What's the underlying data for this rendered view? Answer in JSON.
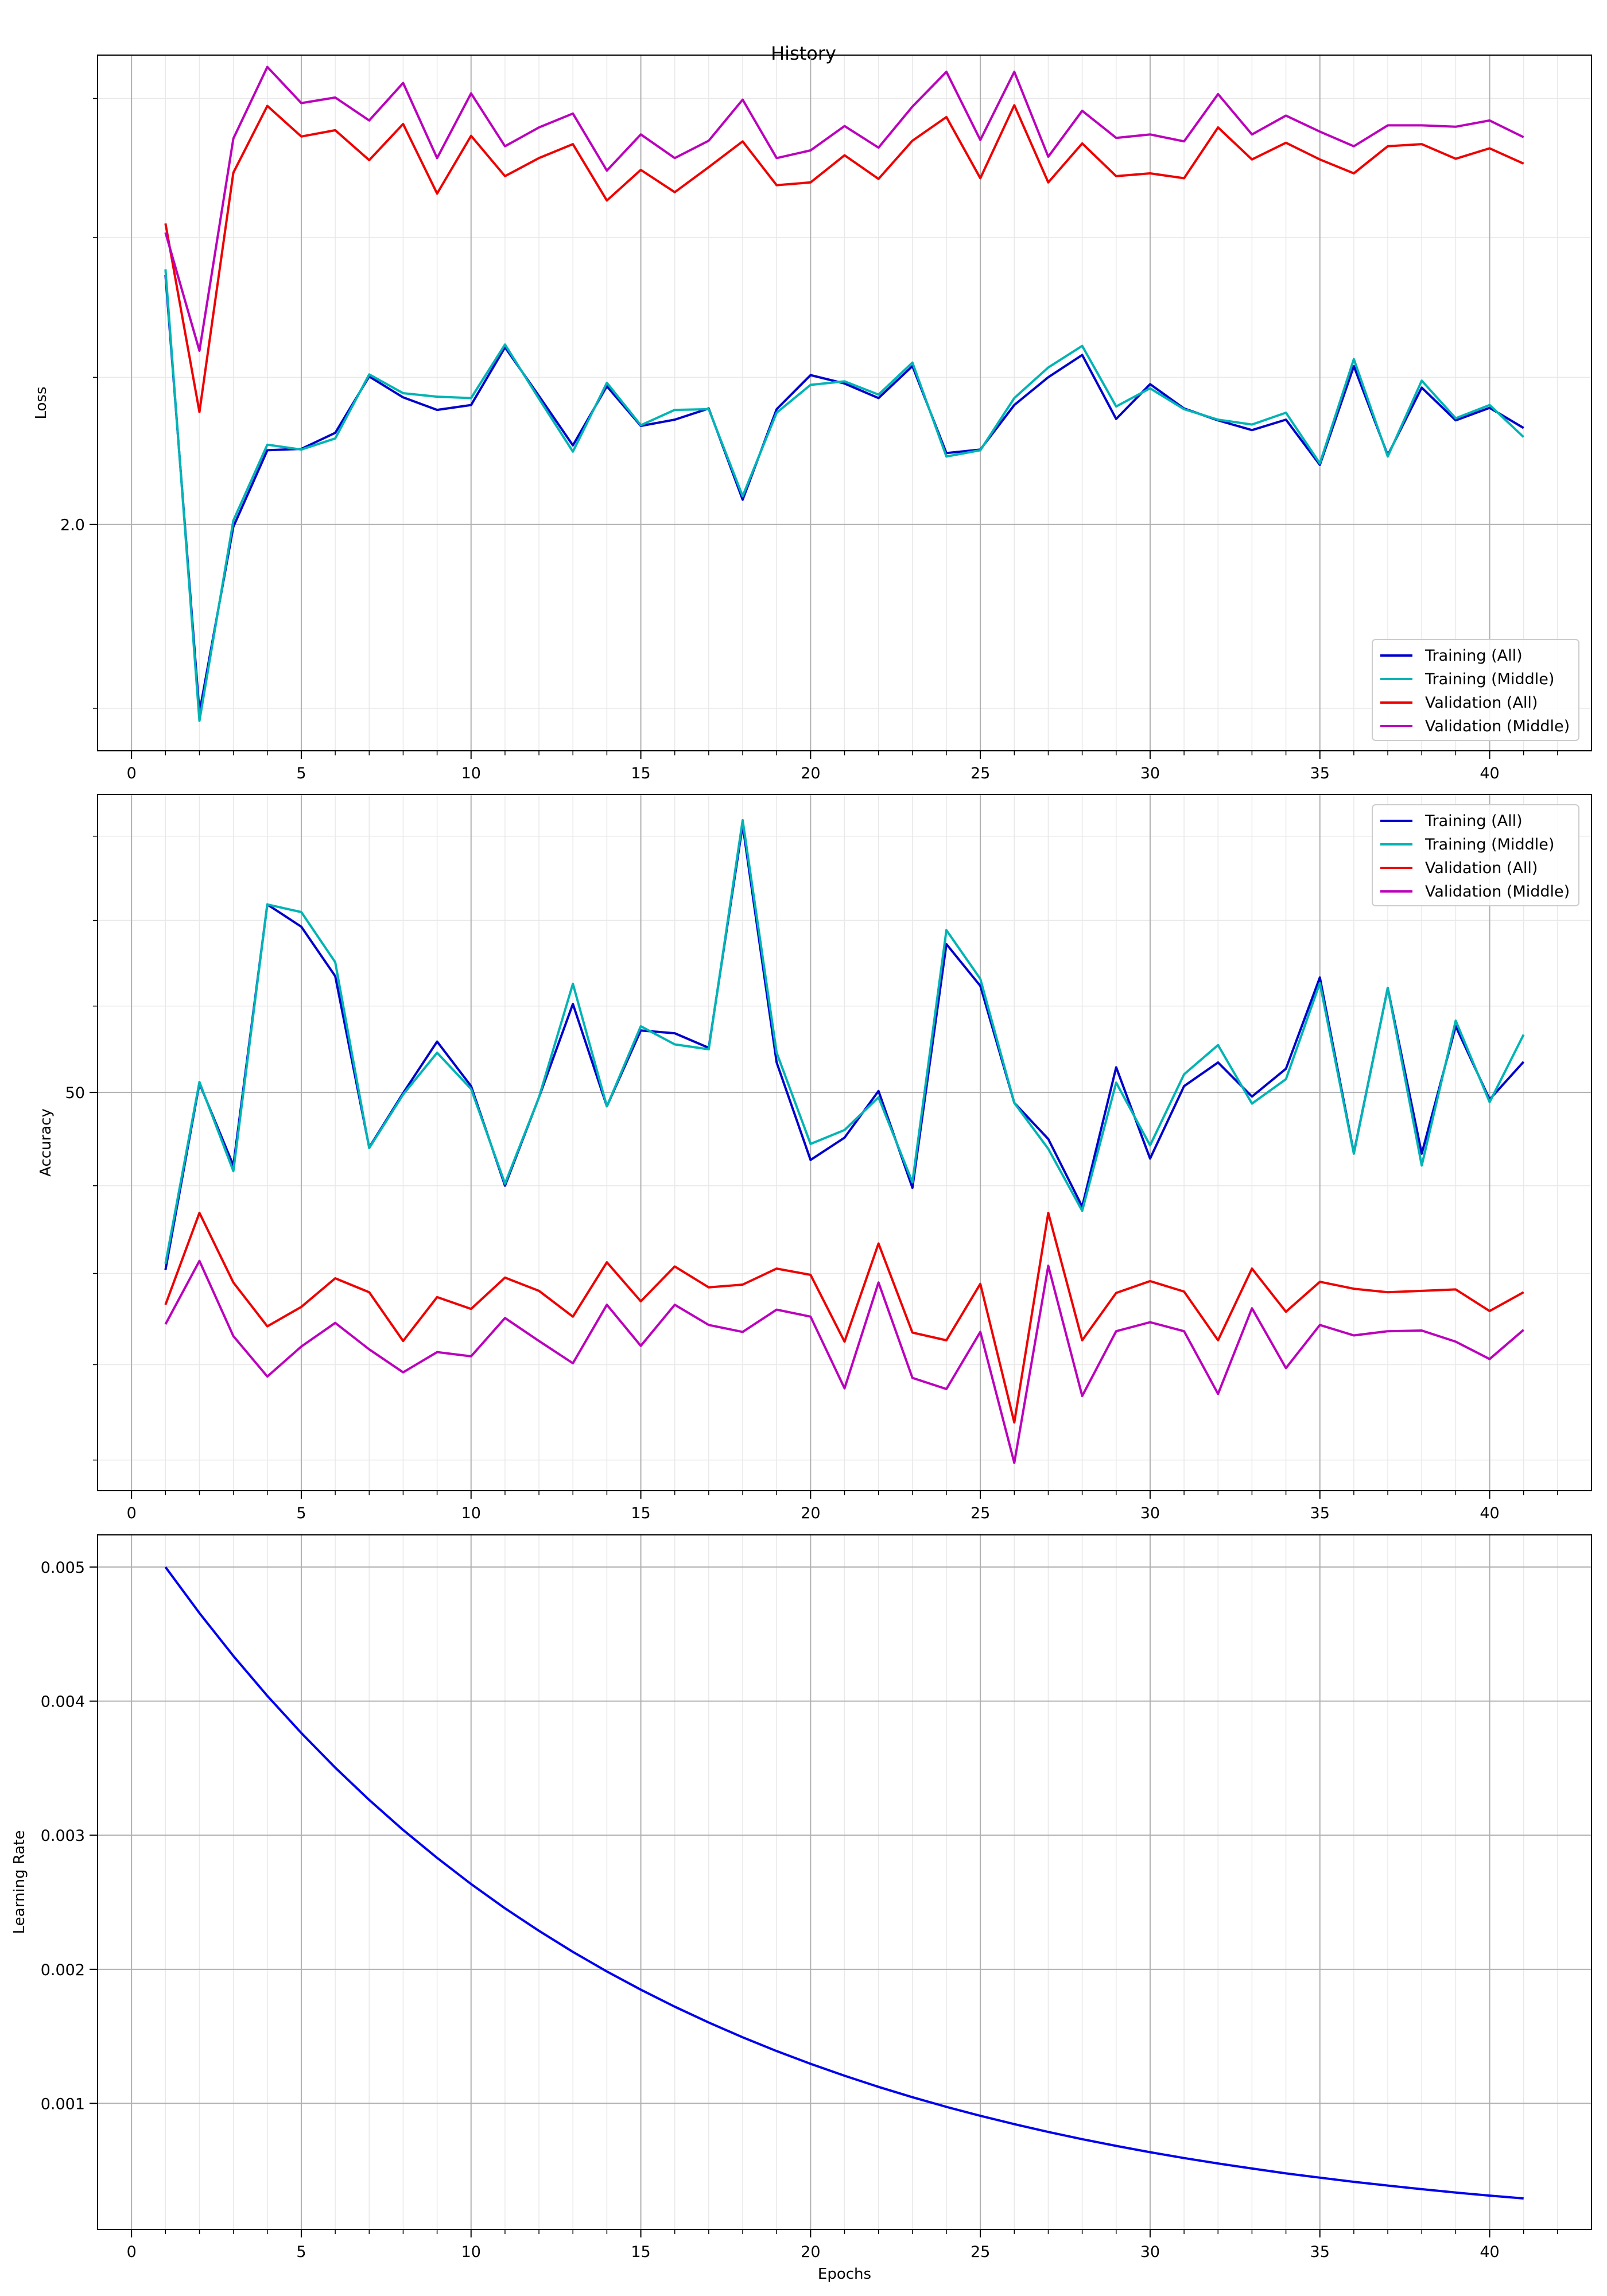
{
  "title": "History",
  "chart_data": [
    {
      "type": "line",
      "ylabel": "Loss",
      "xlabel": "",
      "grid": true,
      "xlim": [
        -1,
        43
      ],
      "ylim": [
        0,
        1
      ],
      "xticks": [
        0,
        5,
        10,
        15,
        20,
        25,
        30,
        35,
        40
      ],
      "yticks": [
        {
          "value": 0.3253,
          "label": "2.0"
        }
      ],
      "y_minor_ticks": [
        0.0611,
        0.5368,
        0.7377,
        0.9377
      ],
      "legend": "lower-right",
      "x": [
        1,
        2,
        3,
        4,
        5,
        6,
        7,
        8,
        9,
        10,
        11,
        12,
        13,
        14,
        15,
        16,
        17,
        18,
        19,
        20,
        21,
        22,
        23,
        24,
        25,
        26,
        27,
        28,
        29,
        30,
        31,
        32,
        33,
        34,
        35,
        36,
        37,
        38,
        39,
        40,
        41
      ],
      "series": [
        {
          "name": "Training (All)",
          "color": "#0000cc",
          "values": [
            0.684,
            0.055,
            0.322,
            0.432,
            0.434,
            0.457,
            0.538,
            0.508,
            0.49,
            0.497,
            0.58,
            0.51,
            0.439,
            0.524,
            0.467,
            0.476,
            0.492,
            0.361,
            0.491,
            0.54,
            0.528,
            0.507,
            0.553,
            0.428,
            0.433,
            0.497,
            0.537,
            0.569,
            0.477,
            0.527,
            0.492,
            0.475,
            0.461,
            0.476,
            0.411,
            0.553,
            0.425,
            0.522,
            0.475,
            0.493,
            0.464
          ]
        },
        {
          "name": "Training (Middle)",
          "color": "#00b4b4",
          "values": [
            0.692,
            0.043,
            0.331,
            0.44,
            0.433,
            0.449,
            0.541,
            0.514,
            0.509,
            0.507,
            0.584,
            0.506,
            0.43,
            0.529,
            0.468,
            0.49,
            0.491,
            0.366,
            0.486,
            0.526,
            0.531,
            0.512,
            0.558,
            0.423,
            0.432,
            0.507,
            0.551,
            0.582,
            0.495,
            0.521,
            0.491,
            0.476,
            0.469,
            0.486,
            0.413,
            0.563,
            0.423,
            0.532,
            0.478,
            0.497,
            0.451
          ]
        },
        {
          "name": "Validation (All)",
          "color": "#ee0000",
          "values": [
            0.758,
            0.487,
            0.831,
            0.927,
            0.883,
            0.892,
            0.849,
            0.901,
            0.801,
            0.884,
            0.826,
            0.852,
            0.872,
            0.791,
            0.835,
            0.803,
            0.839,
            0.876,
            0.813,
            0.817,
            0.856,
            0.822,
            0.877,
            0.911,
            0.823,
            0.928,
            0.817,
            0.873,
            0.826,
            0.83,
            0.823,
            0.896,
            0.85,
            0.874,
            0.85,
            0.83,
            0.869,
            0.872,
            0.851,
            0.866,
            0.844
          ]
        },
        {
          "name": "Validation (Middle)",
          "color": "#bb00bb",
          "values": [
            0.745,
            0.575,
            0.88,
            0.983,
            0.931,
            0.939,
            0.906,
            0.96,
            0.852,
            0.945,
            0.869,
            0.896,
            0.916,
            0.834,
            0.886,
            0.852,
            0.877,
            0.936,
            0.852,
            0.863,
            0.898,
            0.867,
            0.926,
            0.976,
            0.878,
            0.976,
            0.854,
            0.92,
            0.881,
            0.886,
            0.876,
            0.944,
            0.886,
            0.913,
            0.89,
            0.869,
            0.899,
            0.899,
            0.897,
            0.906,
            0.882
          ]
        }
      ]
    },
    {
      "type": "line",
      "ylabel": "Accuracy",
      "xlabel": "",
      "grid": true,
      "xlim": [
        -1,
        43
      ],
      "ylim": [
        0,
        1
      ],
      "xticks": [
        0,
        5,
        10,
        15,
        20,
        25,
        30,
        35,
        40
      ],
      "yticks": [
        {
          "value": 0.572,
          "label": "50"
        }
      ],
      "y_minor_ticks": [
        0.044,
        0.181,
        0.312,
        0.438,
        0.696,
        0.819,
        0.94
      ],
      "legend": "upper-right",
      "x": [
        1,
        2,
        3,
        4,
        5,
        6,
        7,
        8,
        9,
        10,
        11,
        12,
        13,
        14,
        15,
        16,
        17,
        18,
        19,
        20,
        21,
        22,
        23,
        24,
        25,
        26,
        27,
        28,
        29,
        30,
        31,
        32,
        33,
        34,
        35,
        36,
        37,
        38,
        39,
        40,
        41
      ],
      "series": [
        {
          "name": "Training (All)",
          "color": "#0000cc",
          "values": [
            0.317,
            0.585,
            0.467,
            0.842,
            0.81,
            0.739,
            0.493,
            0.571,
            0.645,
            0.581,
            0.438,
            0.565,
            0.699,
            0.552,
            0.661,
            0.657,
            0.636,
            0.956,
            0.615,
            0.475,
            0.507,
            0.574,
            0.435,
            0.785,
            0.725,
            0.557,
            0.505,
            0.408,
            0.608,
            0.477,
            0.581,
            0.615,
            0.566,
            0.606,
            0.737,
            0.485,
            0.722,
            0.484,
            0.667,
            0.562,
            0.616
          ]
        },
        {
          "name": "Training (Middle)",
          "color": "#00b4b4",
          "values": [
            0.326,
            0.587,
            0.459,
            0.842,
            0.831,
            0.759,
            0.492,
            0.569,
            0.629,
            0.577,
            0.441,
            0.565,
            0.728,
            0.552,
            0.667,
            0.641,
            0.634,
            0.963,
            0.629,
            0.498,
            0.518,
            0.565,
            0.443,
            0.805,
            0.735,
            0.557,
            0.491,
            0.402,
            0.586,
            0.496,
            0.598,
            0.64,
            0.556,
            0.591,
            0.729,
            0.484,
            0.722,
            0.467,
            0.675,
            0.558,
            0.655
          ]
        },
        {
          "name": "Validation (All)",
          "color": "#ee0000",
          "values": [
            0.267,
            0.399,
            0.299,
            0.236,
            0.264,
            0.305,
            0.285,
            0.215,
            0.278,
            0.261,
            0.306,
            0.287,
            0.25,
            0.328,
            0.272,
            0.322,
            0.292,
            0.296,
            0.319,
            0.31,
            0.214,
            0.355,
            0.227,
            0.216,
            0.297,
            0.098,
            0.399,
            0.216,
            0.284,
            0.301,
            0.286,
            0.216,
            0.319,
            0.257,
            0.3,
            0.29,
            0.285,
            0.287,
            0.289,
            0.258,
            0.285
          ]
        },
        {
          "name": "Validation (Middle)",
          "color": "#bb00bb",
          "values": [
            0.239,
            0.33,
            0.222,
            0.164,
            0.207,
            0.241,
            0.203,
            0.17,
            0.199,
            0.193,
            0.248,
            0.215,
            0.183,
            0.267,
            0.208,
            0.267,
            0.238,
            0.228,
            0.26,
            0.25,
            0.147,
            0.299,
            0.162,
            0.146,
            0.228,
            0.04,
            0.323,
            0.136,
            0.229,
            0.242,
            0.229,
            0.139,
            0.262,
            0.176,
            0.238,
            0.223,
            0.229,
            0.23,
            0.214,
            0.189,
            0.231
          ]
        }
      ]
    },
    {
      "type": "line",
      "ylabel": "Learning Rate",
      "xlabel": "Epochs",
      "grid": true,
      "xlim": [
        -1,
        43
      ],
      "ylim": [
        6e-05,
        0.00524
      ],
      "xticks": [
        0,
        5,
        10,
        15,
        20,
        25,
        30,
        35,
        40
      ],
      "yticks": [
        {
          "value": 0.001,
          "label": "0.001"
        },
        {
          "value": 0.002,
          "label": "0.002"
        },
        {
          "value": 0.003,
          "label": "0.003"
        },
        {
          "value": 0.004,
          "label": "0.004"
        },
        {
          "value": 0.005,
          "label": "0.005"
        }
      ],
      "legend": "none",
      "x": [
        1,
        2,
        3,
        4,
        5,
        6,
        7,
        8,
        9,
        10,
        11,
        12,
        13,
        14,
        15,
        16,
        17,
        18,
        19,
        20,
        21,
        22,
        23,
        24,
        25,
        26,
        27,
        28,
        29,
        30,
        31,
        32,
        33,
        34,
        35,
        36,
        37,
        38,
        39,
        40,
        41
      ],
      "series": [
        {
          "name": "",
          "color": "#0000ee",
          "values": [
            0.005,
            0.004657,
            0.004337,
            0.004039,
            0.003762,
            0.003504,
            0.003263,
            0.003039,
            0.002831,
            0.002636,
            0.002455,
            0.002287,
            0.00213,
            0.001984,
            0.001848,
            0.001721,
            0.001603,
            0.001493,
            0.00139,
            0.001295,
            0.001206,
            0.001123,
            0.001046,
            0.000974,
            0.000907,
            0.000845,
            0.000787,
            0.000733,
            0.000683,
            0.000636,
            0.000592,
            0.000552,
            0.000514,
            0.000478,
            0.000446,
            0.000415,
            0.000387,
            0.00036,
            0.000335,
            0.000312,
            0.000291
          ]
        }
      ]
    }
  ]
}
